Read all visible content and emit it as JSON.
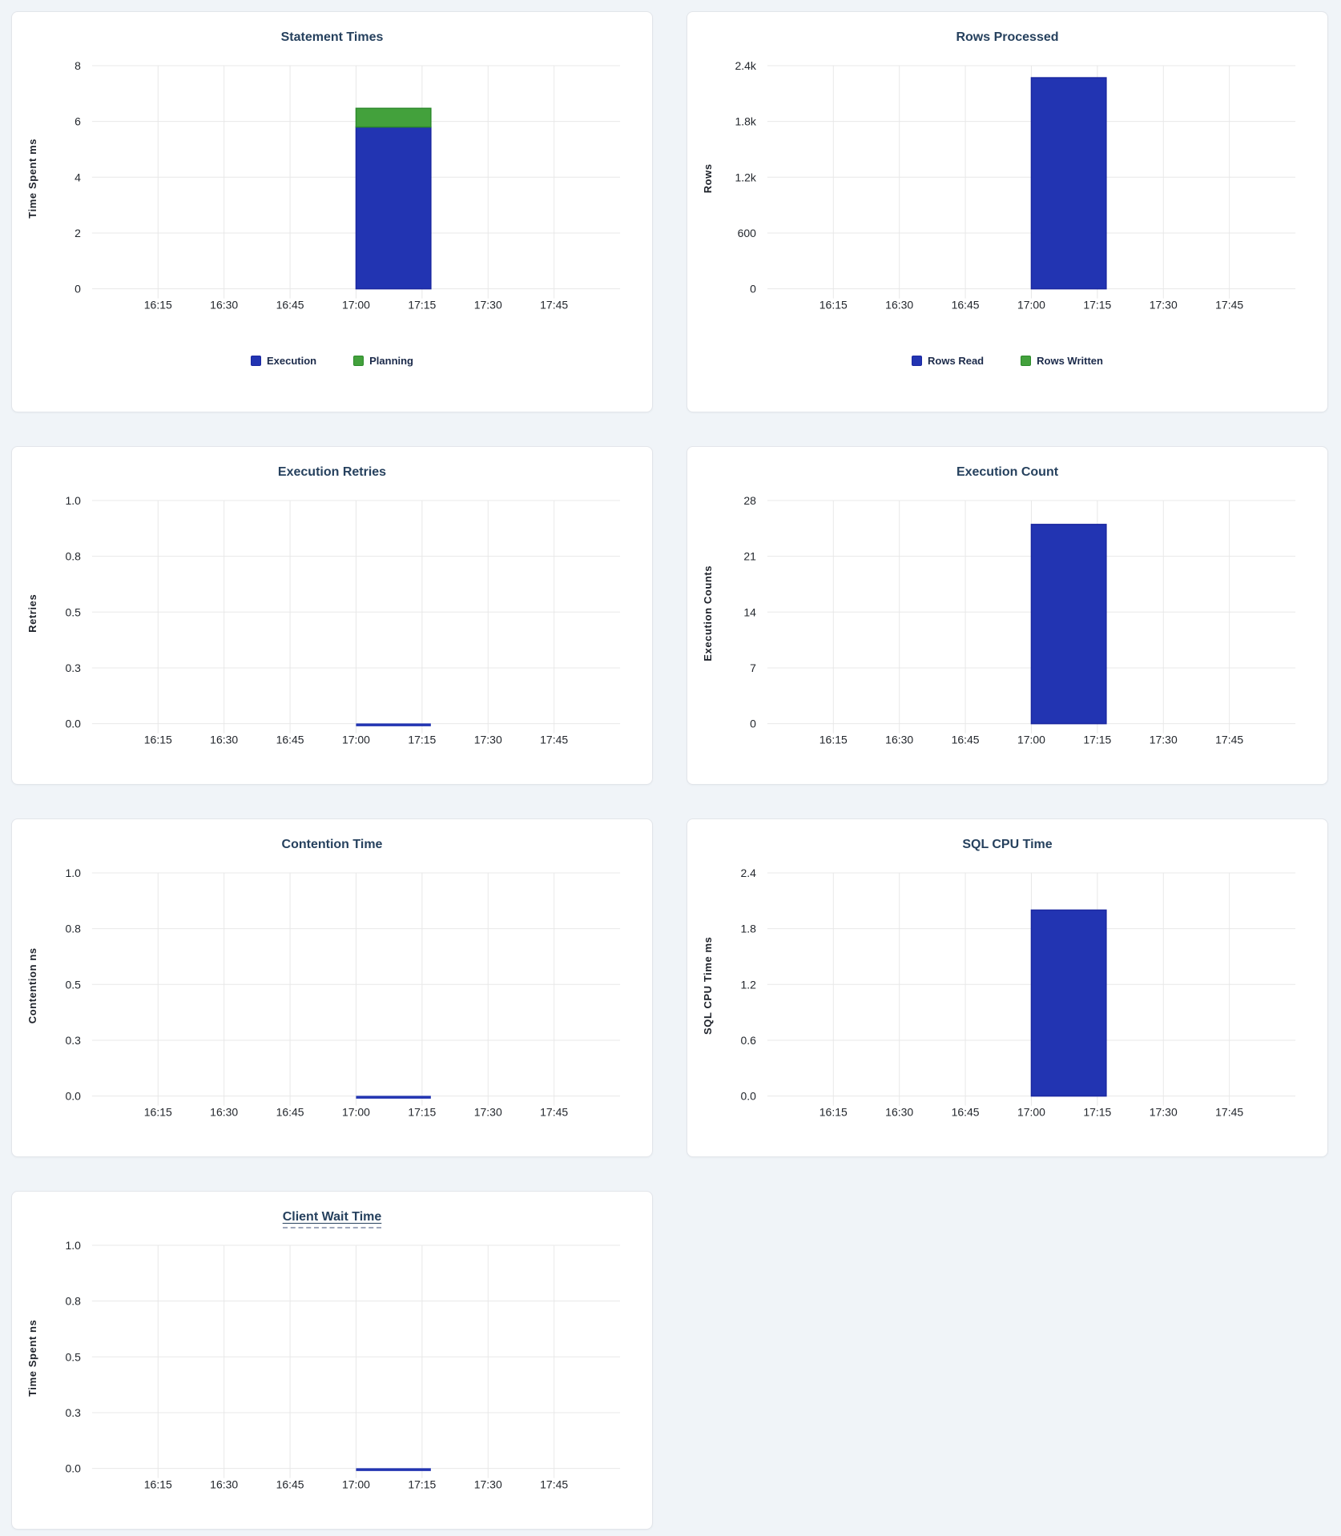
{
  "page": {
    "background": "#f0f4f8"
  },
  "colors": {
    "card_background": "#ffffff",
    "card_border": "#e2e5ea",
    "title_text": "#26415e",
    "axis_label_text": "#1d2129",
    "tick_text": "#23272d",
    "gridline": "#e8e8e8",
    "legend_text": "#1b2a4a",
    "blue": "#2234b2",
    "blue_border": "#1a27a0",
    "green": "#43a13c",
    "green_border": "#2c8a2b"
  },
  "chart_data": [
    {
      "type": "bar",
      "title": "Statement Times",
      "ylabel": "Time Spent ms",
      "ylim": [
        0,
        8
      ],
      "y_tick_values": [
        0,
        2,
        4,
        6,
        8
      ],
      "y_tick_labels": [
        "0",
        "2",
        "4",
        "6",
        "8"
      ],
      "x_tick_labels": [
        "16:15",
        "16:30",
        "16:45",
        "17:00",
        "17:15",
        "17:30",
        "17:45"
      ],
      "grid": true,
      "stacked": true,
      "bar": {
        "start_tick": "17:00",
        "duration_minutes": 17
      },
      "series": [
        {
          "name": "Execution",
          "color_key": "blue",
          "value": 5.8
        },
        {
          "name": "Planning",
          "color_key": "green",
          "value": 0.67
        }
      ],
      "legend": {
        "position": "bottom",
        "items": [
          {
            "label": "Execution",
            "color_key": "blue"
          },
          {
            "label": "Planning",
            "color_key": "green"
          }
        ]
      }
    },
    {
      "type": "bar",
      "title": "Rows Processed",
      "ylabel": "Rows",
      "ylim": [
        0,
        2400
      ],
      "y_tick_values": [
        0,
        600,
        1200,
        1800,
        2400
      ],
      "y_tick_labels": [
        "0",
        "600",
        "1.2k",
        "1.8k",
        "2.4k"
      ],
      "x_tick_labels": [
        "16:15",
        "16:30",
        "16:45",
        "17:00",
        "17:15",
        "17:30",
        "17:45"
      ],
      "grid": true,
      "stacked": true,
      "bar": {
        "start_tick": "17:00",
        "duration_minutes": 17
      },
      "series": [
        {
          "name": "Rows Read",
          "color_key": "blue",
          "value": 2270
        },
        {
          "name": "Rows Written",
          "color_key": "green",
          "value": 0
        }
      ],
      "legend": {
        "position": "bottom",
        "items": [
          {
            "label": "Rows Read",
            "color_key": "blue"
          },
          {
            "label": "Rows Written",
            "color_key": "green"
          }
        ]
      }
    },
    {
      "type": "line",
      "title": "Execution Retries",
      "ylabel": "Retries",
      "ylim": [
        0,
        1
      ],
      "y_tick_values": [
        0,
        0.25,
        0.5,
        0.75,
        1
      ],
      "y_tick_labels": [
        "0.0",
        "0.3",
        "0.5",
        "0.8",
        "1.0"
      ],
      "x_tick_labels": [
        "16:15",
        "16:30",
        "16:45",
        "17:00",
        "17:15",
        "17:30",
        "17:45"
      ],
      "grid": true,
      "bar": {
        "start_tick": "17:00",
        "duration_minutes": 17
      },
      "series": [
        {
          "name": "Retries",
          "color_key": "blue",
          "value": 0
        }
      ]
    },
    {
      "type": "bar",
      "title": "Execution Count",
      "ylabel": "Execution Counts",
      "ylim": [
        0,
        28
      ],
      "y_tick_values": [
        0,
        7,
        14,
        21,
        28
      ],
      "y_tick_labels": [
        "0",
        "7",
        "14",
        "21",
        "28"
      ],
      "x_tick_labels": [
        "16:15",
        "16:30",
        "16:45",
        "17:00",
        "17:15",
        "17:30",
        "17:45"
      ],
      "grid": true,
      "stacked": false,
      "bar": {
        "start_tick": "17:00",
        "duration_minutes": 17
      },
      "series": [
        {
          "name": "Execution Count",
          "color_key": "blue",
          "value": 25
        }
      ]
    },
    {
      "type": "line",
      "title": "Contention Time",
      "ylabel": "Contention ns",
      "ylim": [
        0,
        1
      ],
      "y_tick_values": [
        0,
        0.25,
        0.5,
        0.75,
        1
      ],
      "y_tick_labels": [
        "0.0",
        "0.3",
        "0.5",
        "0.8",
        "1.0"
      ],
      "x_tick_labels": [
        "16:15",
        "16:30",
        "16:45",
        "17:00",
        "17:15",
        "17:30",
        "17:45"
      ],
      "grid": true,
      "bar": {
        "start_tick": "17:00",
        "duration_minutes": 17
      },
      "series": [
        {
          "name": "Contention",
          "color_key": "blue",
          "value": 0
        }
      ]
    },
    {
      "type": "bar",
      "title": "SQL CPU Time",
      "ylabel": "SQL CPU Time ms",
      "ylim": [
        0,
        2.4
      ],
      "y_tick_values": [
        0,
        0.6,
        1.2,
        1.8,
        2.4
      ],
      "y_tick_labels": [
        "0.0",
        "0.6",
        "1.2",
        "1.8",
        "2.4"
      ],
      "x_tick_labels": [
        "16:15",
        "16:30",
        "16:45",
        "17:00",
        "17:15",
        "17:30",
        "17:45"
      ],
      "grid": true,
      "stacked": false,
      "bar": {
        "start_tick": "17:00",
        "duration_minutes": 17
      },
      "series": [
        {
          "name": "SQL CPU Time",
          "color_key": "blue",
          "value": 2.0
        }
      ]
    },
    {
      "type": "line",
      "title": "Client Wait Time",
      "title_tooltip_underline": true,
      "ylabel": "Time Spent ns",
      "ylim": [
        0,
        1
      ],
      "y_tick_values": [
        0,
        0.25,
        0.5,
        0.75,
        1
      ],
      "y_tick_labels": [
        "0.0",
        "0.3",
        "0.5",
        "0.8",
        "1.0"
      ],
      "x_tick_labels": [
        "16:15",
        "16:30",
        "16:45",
        "17:00",
        "17:15",
        "17:30",
        "17:45"
      ],
      "grid": true,
      "bar": {
        "start_tick": "17:00",
        "duration_minutes": 17
      },
      "series": [
        {
          "name": "Client Wait",
          "color_key": "blue",
          "value": 0
        }
      ]
    }
  ]
}
